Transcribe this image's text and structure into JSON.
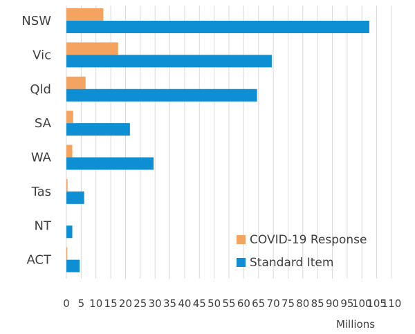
{
  "chart_data": {
    "type": "bar",
    "orientation": "horizontal",
    "categories": [
      "NSW",
      "Vic",
      "Qld",
      "SA",
      "WA",
      "Tas",
      "NT",
      "ACT"
    ],
    "series": [
      {
        "name": "COVID-19 Response",
        "color": "#f4a460",
        "values": [
          12.5,
          17.5,
          6.5,
          2.3,
          2.0,
          0.4,
          0.0,
          0.3
        ]
      },
      {
        "name": "Standard Item",
        "color": "#0f8fd3",
        "values": [
          102.5,
          69.5,
          64.5,
          21.5,
          29.5,
          6.0,
          2.0,
          4.5
        ]
      }
    ],
    "xlim": [
      0,
      110
    ],
    "xticks": [
      "0",
      "5",
      "10",
      "15",
      "20",
      "25",
      "30",
      "35",
      "40",
      "45",
      "50",
      "55",
      "60",
      "65",
      "70",
      "75",
      "80",
      "85",
      "90",
      "95",
      "100",
      "105",
      "110"
    ],
    "xlabel": "Millions",
    "ylabel": "",
    "title": "",
    "grid": "vertical",
    "legend_position": "bottom-right"
  }
}
